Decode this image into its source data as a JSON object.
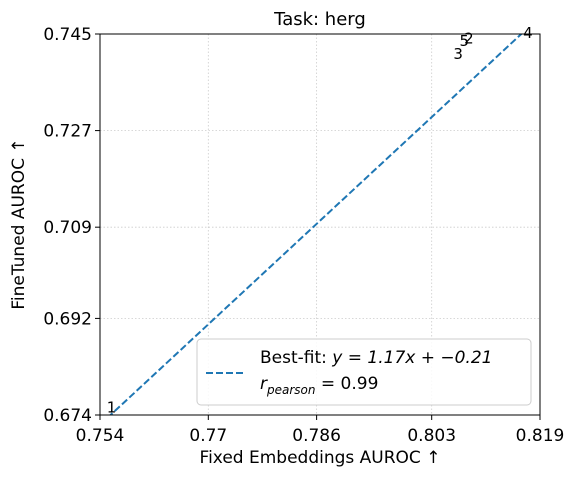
{
  "chart_data": {
    "type": "scatter",
    "title": "Task: herg",
    "xlabel": "Fixed Embeddings AUROC ↑",
    "ylabel": "FineTuned AUROC ↑",
    "xlim": [
      0.754,
      0.819
    ],
    "ylim": [
      0.674,
      0.745
    ],
    "xticks": [
      0.754,
      0.77,
      0.786,
      0.803,
      0.819
    ],
    "xtick_labels": [
      "0.754",
      "0.77",
      "0.786",
      "0.803",
      "0.819"
    ],
    "yticks": [
      0.674,
      0.692,
      0.709,
      0.727,
      0.745
    ],
    "ytick_labels": [
      "0.674",
      "0.692",
      "0.709",
      "0.727",
      "0.745"
    ],
    "grid": true,
    "points": [
      {
        "label": "1",
        "x": 0.755,
        "y": 0.6745
      },
      {
        "label": "2",
        "x": 0.8078,
        "y": 0.7432
      },
      {
        "label": "3",
        "x": 0.8062,
        "y": 0.7403
      },
      {
        "label": "4",
        "x": 0.8165,
        "y": 0.7443
      },
      {
        "label": "5",
        "x": 0.8071,
        "y": 0.7428
      }
    ],
    "fit": {
      "slope": 1.17,
      "intercept": -0.21,
      "color": "#1f77b4",
      "style": "dashed"
    },
    "legend": {
      "placement": "lower-right",
      "fit_prefix": "Best-fit: ",
      "fit_equation": "y = 1.17x + −0.21",
      "r_symbol": "r",
      "r_subscript": "pearson",
      "r_value": " = 0.99"
    }
  }
}
